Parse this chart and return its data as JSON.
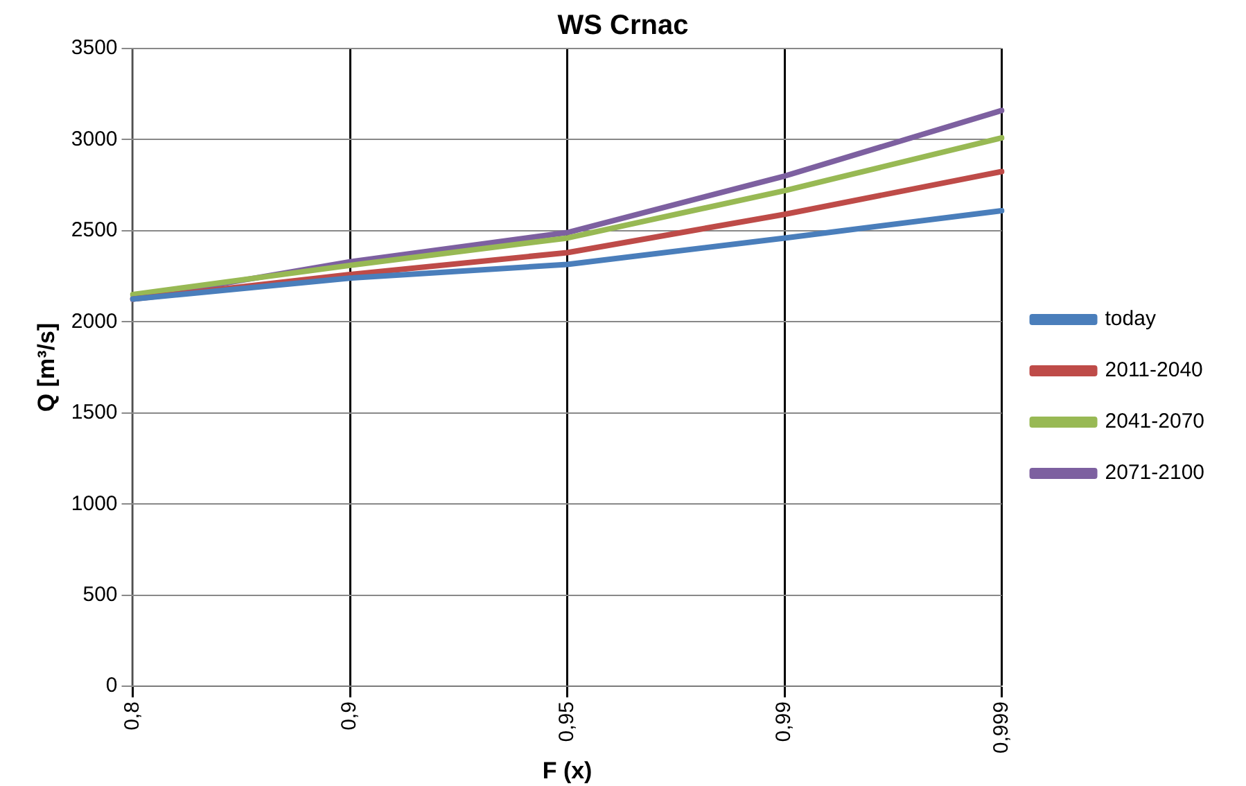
{
  "chart_data": {
    "type": "line",
    "title": "WS Crnac",
    "xlabel": "F (x)",
    "ylabel": "Q [m³/s]",
    "categories": [
      "0,8",
      "0,9",
      "0,95",
      "0,99",
      "0,999"
    ],
    "series": [
      {
        "name": "today",
        "color": "#4a7ebb",
        "values": [
          2125,
          2240,
          2315,
          2460,
          2610
        ]
      },
      {
        "name": "2011-2040",
        "color": "#be4b48",
        "values": [
          2125,
          2260,
          2380,
          2590,
          2825
        ]
      },
      {
        "name": "2041-2070",
        "color": "#98b954",
        "values": [
          2150,
          2310,
          2460,
          2720,
          3010
        ]
      },
      {
        "name": "2071-2100",
        "color": "#7d60a0",
        "values": [
          2125,
          2330,
          2490,
          2800,
          3160
        ]
      }
    ],
    "ylim": [
      0,
      3500
    ],
    "yticks": [
      0,
      500,
      1000,
      1500,
      2000,
      2500,
      3000,
      3500
    ],
    "grid": true,
    "legend": "right",
    "marker": "none",
    "line_style": "solid"
  }
}
